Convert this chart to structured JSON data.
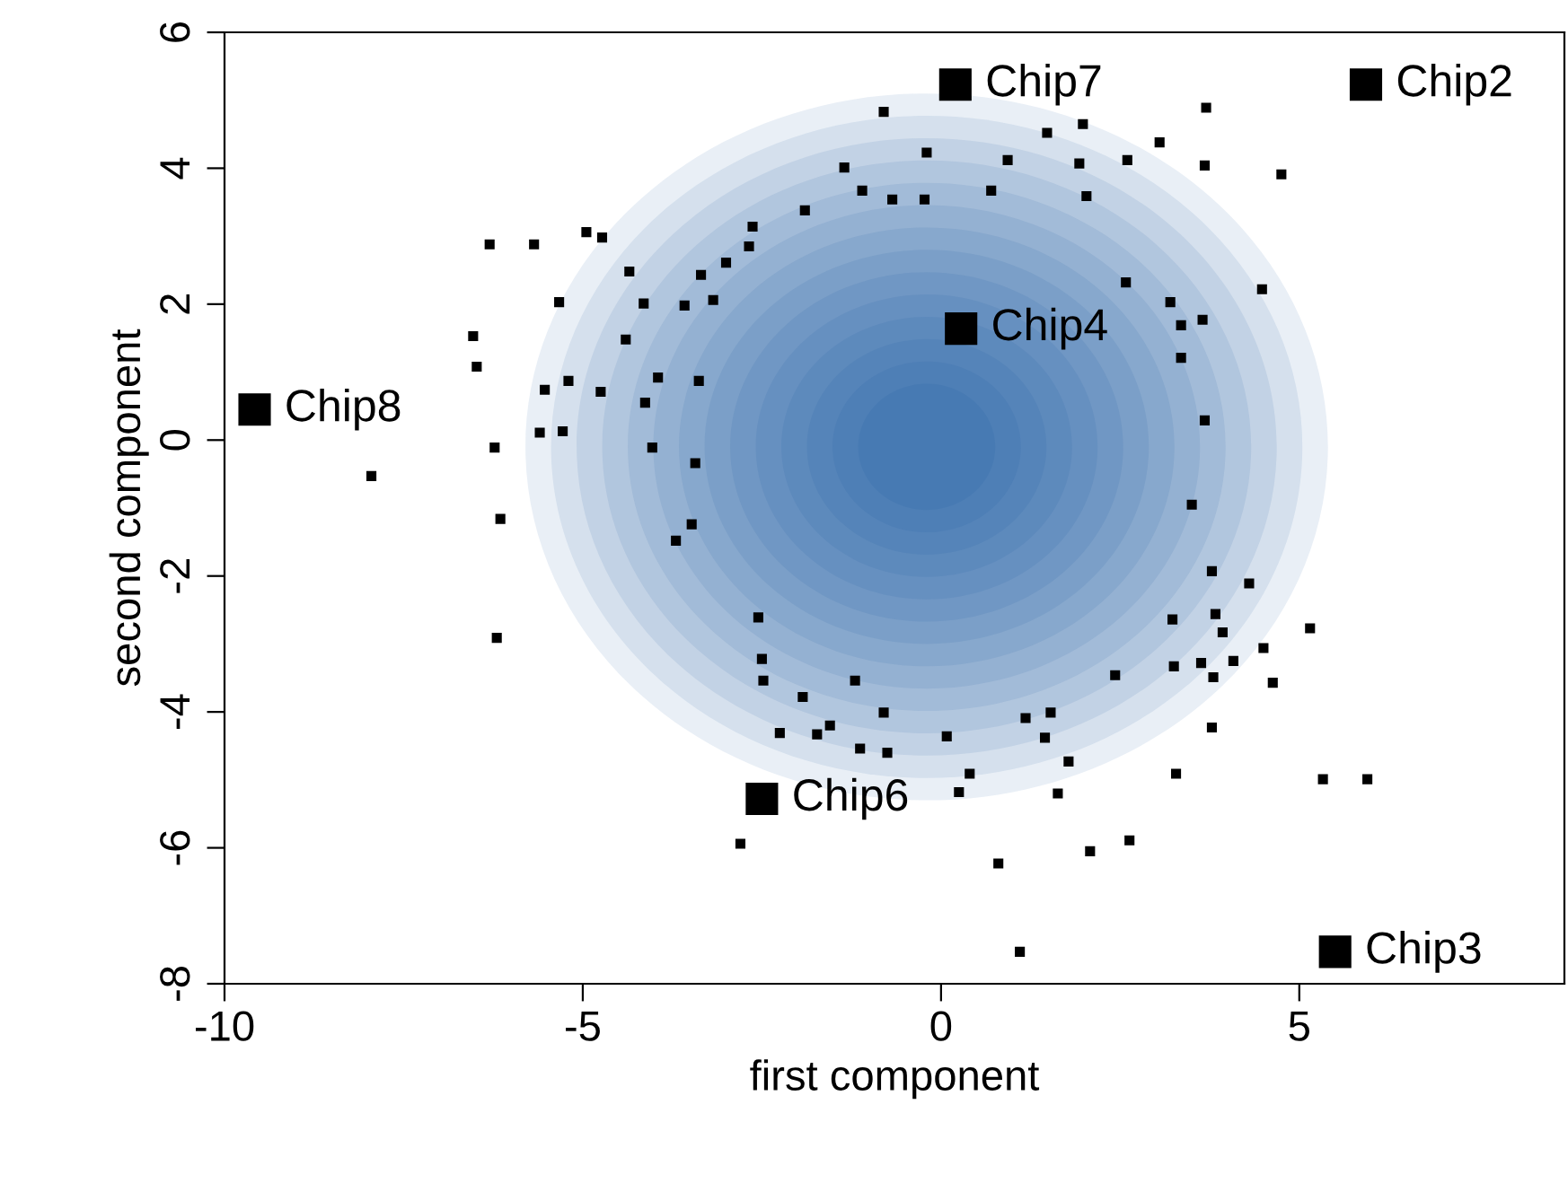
{
  "chart_data": {
    "type": "scatter",
    "xlabel": "first component",
    "ylabel": "second component",
    "xlim": [
      -10,
      8.7
    ],
    "ylim": [
      -8,
      6
    ],
    "xticks": [
      -10,
      -5,
      0,
      5
    ],
    "yticks": [
      -8,
      -6,
      -4,
      -2,
      0,
      2,
      4,
      6
    ],
    "grid": false,
    "legend": false,
    "series": [
      {
        "color": "#000000",
        "marker": "square",
        "x": [
          -0.8,
          -1.35,
          -1.1,
          -0.68,
          -1.9,
          -2.63,
          -2.68,
          -3.0,
          -3.35,
          -3.18,
          -3.58,
          -4.15,
          -4.35,
          -4.95,
          -4.73,
          -5.68,
          -6.3,
          -5.33,
          -6.53,
          -6.48,
          -4.4,
          -5.53,
          -5.2,
          -4.75,
          -3.95,
          -3.38,
          -4.13,
          -5.6,
          -5.28,
          -6.23,
          -4.03,
          -3.43,
          -7.95,
          3.7,
          1.98,
          1.48,
          3.05,
          -0.2,
          0.93,
          1.93,
          2.6,
          3.68,
          4.75,
          -0.23,
          0.7,
          2.03,
          2.58,
          4.48,
          3.2,
          3.35,
          3.65,
          3.35,
          3.68,
          3.5,
          -6.15,
          -3.48,
          -3.7,
          -6.2,
          -2.55,
          -2.5,
          -2.48,
          -1.93,
          -1.2,
          -0.8,
          -2.25,
          -1.73,
          -1.55,
          -1.13,
          -0.75,
          -2.8,
          3.78,
          4.3,
          3.23,
          3.83,
          3.93,
          4.5,
          5.15,
          3.25,
          3.63,
          4.08,
          3.8,
          4.63,
          2.43,
          3.78,
          3.28,
          5.33,
          5.95,
          1.18,
          1.53,
          1.45,
          0.08,
          1.78,
          0.4,
          0.25,
          1.63,
          0.8,
          2.08,
          2.63,
          1.1
        ],
        "values": [
          4.83,
          4.01,
          3.67,
          3.54,
          3.38,
          3.14,
          2.85,
          2.61,
          2.43,
          2.06,
          1.98,
          2.01,
          2.48,
          3.06,
          2.98,
          2.88,
          2.88,
          2.03,
          1.53,
          1.08,
          1.48,
          0.74,
          0.87,
          0.71,
          0.92,
          0.87,
          0.55,
          0.11,
          0.13,
          -0.11,
          -0.11,
          -0.34,
          -0.53,
          4.89,
          4.65,
          4.52,
          4.38,
          4.23,
          4.12,
          4.07,
          4.12,
          4.04,
          3.91,
          3.54,
          3.67,
          3.59,
          2.32,
          2.22,
          2.03,
          1.69,
          1.77,
          1.21,
          0.29,
          -0.95,
          -1.16,
          -1.24,
          -1.48,
          -2.91,
          -2.61,
          -3.22,
          -3.54,
          -3.78,
          -3.54,
          -4.01,
          -4.31,
          -4.33,
          -4.2,
          -4.54,
          -4.6,
          -5.94,
          -1.93,
          -2.11,
          -2.64,
          -2.56,
          -2.83,
          -3.06,
          -2.77,
          -3.33,
          -3.28,
          -3.25,
          -3.49,
          -3.57,
          -3.46,
          -4.23,
          -4.91,
          -4.99,
          -4.99,
          -4.09,
          -4.01,
          -4.38,
          -4.36,
          -4.73,
          -4.91,
          -5.18,
          -5.2,
          -6.23,
          -6.05,
          -5.89,
          -7.53
        ]
      },
      {
        "color": "#000000",
        "marker": "square",
        "x": [
          0.2,
          5.93,
          0.28,
          -9.58,
          -2.5,
          5.5
        ],
        "values": [
          5.23,
          5.23,
          1.64,
          0.45,
          -5.28,
          -7.53
        ]
      }
    ],
    "annotations": [
      {
        "text": "Chip7",
        "x": 0.2,
        "y": 5.23
      },
      {
        "text": "Chip2",
        "x": 5.93,
        "y": 5.23
      },
      {
        "text": "Chip4",
        "x": 0.28,
        "y": 1.64
      },
      {
        "text": "Chip8",
        "x": -9.58,
        "y": 0.45
      },
      {
        "text": "Chip6",
        "x": -2.5,
        "y": -5.28
      },
      {
        "text": "Chip3",
        "x": 5.5,
        "y": -7.53
      }
    ]
  }
}
